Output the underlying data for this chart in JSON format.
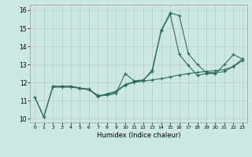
{
  "xlabel": "Humidex (Indice chaleur)",
  "background_color": "#cce8e4",
  "grid_color": "#bbbbbb",
  "line_color": "#2e6b5e",
  "xlim": [
    -0.5,
    23.5
  ],
  "ylim": [
    9.8,
    16.3
  ],
  "xticks": [
    0,
    1,
    2,
    3,
    4,
    5,
    6,
    7,
    8,
    9,
    10,
    11,
    12,
    13,
    14,
    15,
    16,
    17,
    18,
    19,
    20,
    21,
    22,
    23
  ],
  "yticks": [
    10,
    11,
    12,
    13,
    14,
    15,
    16
  ],
  "line1_x": [
    0,
    1,
    2,
    3,
    4,
    5,
    6,
    7,
    8,
    9,
    10,
    11,
    12,
    13,
    14,
    15,
    16,
    17,
    18,
    19,
    20,
    21,
    22,
    23
  ],
  "line1_y": [
    11.2,
    10.1,
    11.8,
    11.8,
    11.8,
    11.7,
    11.6,
    11.3,
    11.3,
    11.4,
    12.5,
    12.1,
    12.15,
    12.6,
    14.9,
    15.85,
    15.7,
    13.6,
    13.0,
    12.55,
    12.55,
    12.6,
    12.9,
    13.3
  ],
  "line2_x": [
    0,
    1,
    2,
    3,
    4,
    5,
    6,
    7,
    8,
    9,
    10,
    11,
    12,
    13,
    14,
    15,
    16,
    17,
    18,
    19,
    20,
    21,
    22,
    23
  ],
  "line2_y": [
    11.2,
    10.1,
    11.75,
    11.75,
    11.75,
    11.68,
    11.62,
    11.22,
    11.35,
    11.48,
    11.85,
    12.02,
    12.08,
    12.15,
    12.22,
    12.32,
    12.42,
    12.5,
    12.56,
    12.62,
    12.66,
    12.72,
    12.88,
    13.22
  ],
  "line3_x": [
    2,
    3,
    4,
    5,
    6,
    7,
    8,
    9,
    10,
    11,
    12,
    13,
    14,
    15,
    16,
    17,
    18,
    19,
    20,
    21,
    22,
    23
  ],
  "line3_y": [
    11.8,
    11.8,
    11.8,
    11.7,
    11.65,
    11.25,
    11.38,
    11.52,
    11.9,
    12.05,
    12.1,
    12.7,
    14.85,
    15.78,
    13.55,
    12.95,
    12.4,
    12.5,
    12.5,
    13.0,
    13.55,
    13.3
  ]
}
